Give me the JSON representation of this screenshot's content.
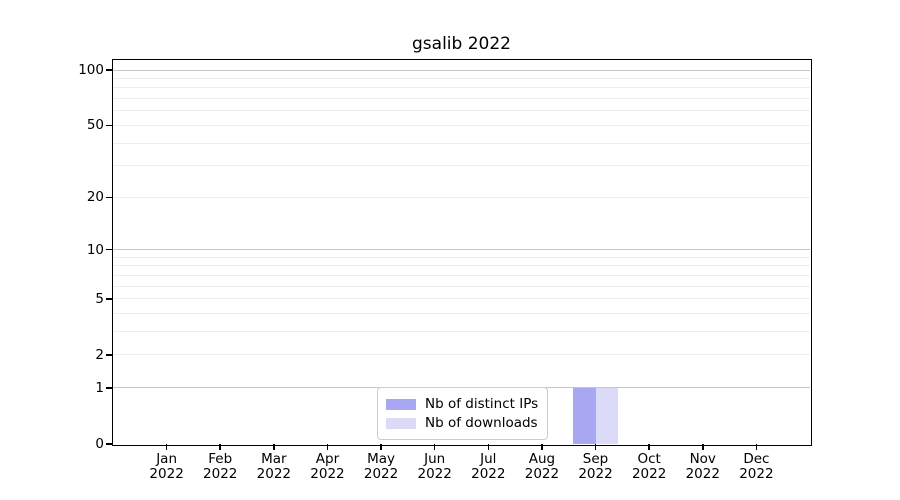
{
  "chart_data": {
    "type": "bar",
    "title": "gsalib 2022",
    "categories": [
      "Jan\n2022",
      "Feb\n2022",
      "Mar\n2022",
      "Apr\n2022",
      "May\n2022",
      "Jun\n2022",
      "Jul\n2022",
      "Aug\n2022",
      "Sep\n2022",
      "Oct\n2022",
      "Nov\n2022",
      "Dec\n2022"
    ],
    "series": [
      {
        "name": "Nb of distinct IPs",
        "color": "#a7a7f2",
        "values": [
          0,
          0,
          0,
          0,
          0,
          0,
          0,
          0,
          1,
          0,
          0,
          0
        ]
      },
      {
        "name": "Nb of downloads",
        "color": "#dbdbf9",
        "values": [
          0,
          0,
          0,
          0,
          0,
          0,
          0,
          0,
          1,
          0,
          0,
          0
        ]
      }
    ],
    "yscale": "log1p",
    "ylim": [
      0,
      113
    ],
    "y_tick_values": [
      0,
      1,
      2,
      5,
      10,
      20,
      50,
      100
    ],
    "y_tick_labels": [
      "0",
      "1",
      "2",
      "5",
      "10",
      "20",
      "50",
      "100"
    ],
    "gridlines": {
      "major_values": [
        1,
        10,
        100
      ],
      "minor_values": [
        2,
        3,
        4,
        5,
        6,
        7,
        8,
        9,
        20,
        30,
        40,
        50,
        60,
        70,
        80,
        90
      ],
      "major_color": "#c6c6c6",
      "minor_color": "#ededed"
    },
    "legend_position": "inside-bottom-center",
    "colors": {
      "background": "#ffffff",
      "spine": "#000000",
      "text": "#000000"
    }
  }
}
